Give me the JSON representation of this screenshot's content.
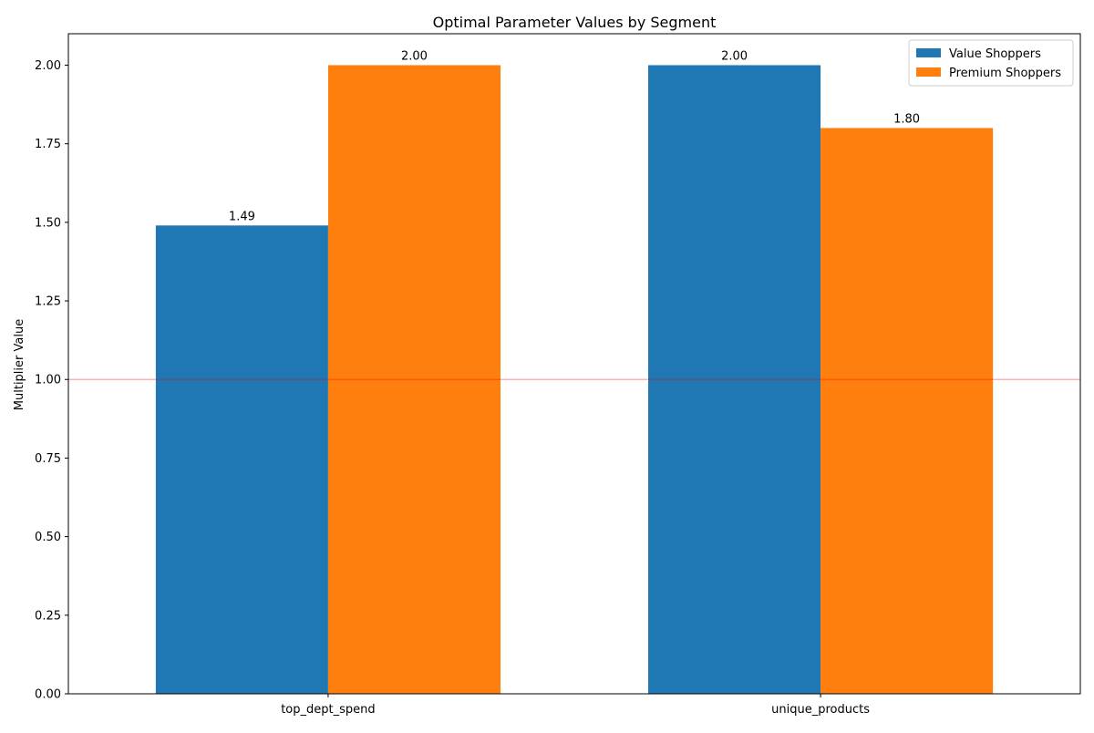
{
  "chart_data": {
    "type": "bar",
    "title": "Optimal Parameter Values by Segment",
    "xlabel": "",
    "ylabel": "Multiplier Value",
    "categories": [
      "top_dept_spend",
      "unique_products"
    ],
    "series": [
      {
        "name": "Value Shoppers",
        "values": [
          1.49,
          2.0
        ],
        "labels": [
          "1.49",
          "2.00"
        ],
        "color": "#1f77b4"
      },
      {
        "name": "Premium Shoppers",
        "values": [
          2.0,
          1.8
        ],
        "labels": [
          "2.00",
          "1.80"
        ],
        "color": "#ff7f0e"
      }
    ],
    "ylim": [
      0,
      2.1
    ],
    "yticks": [
      0.0,
      0.25,
      0.5,
      0.75,
      1.0,
      1.25,
      1.5,
      1.75,
      2.0
    ],
    "ytick_labels": [
      "0.00",
      "0.25",
      "0.50",
      "0.75",
      "1.00",
      "1.25",
      "1.50",
      "1.75",
      "2.00"
    ],
    "reference_line": {
      "y": 1.0,
      "color": "#ff0000"
    },
    "legend": {
      "placement": "top-right"
    },
    "grid": false
  }
}
